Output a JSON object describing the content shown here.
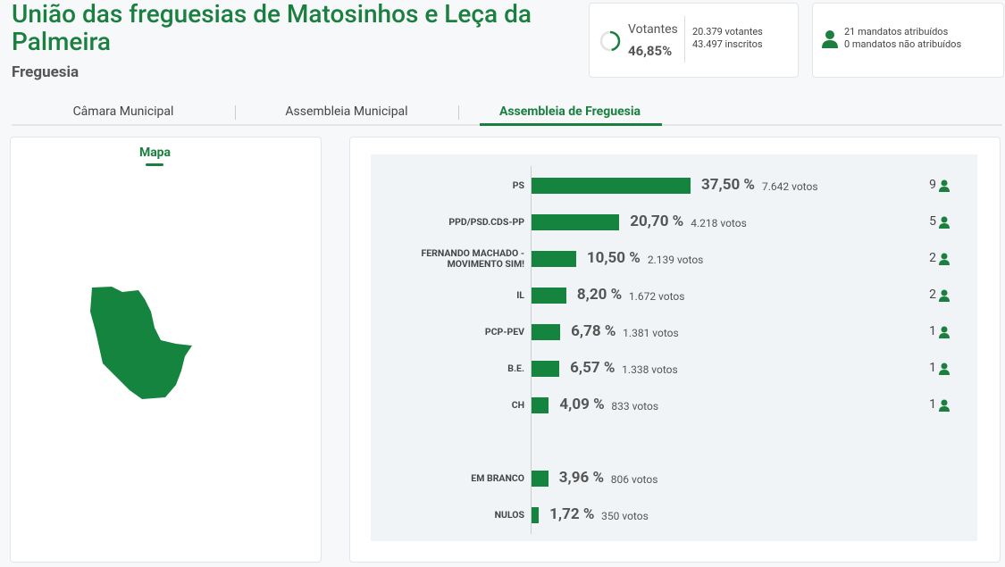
{
  "header": {
    "title": "União das freguesias de Matosinhos e Leça da Palmeira",
    "subtitle": "Freguesia"
  },
  "turnout": {
    "label": "Votantes",
    "value": 46.85,
    "value_label": "46,85%",
    "voters": "20.379 votantes",
    "registered": "43.497 inscritos"
  },
  "mandates": {
    "assigned": "21 mandatos atribuídos",
    "unassigned": "0 mandatos não atribuídos"
  },
  "tabs": [
    "Câmara Municipal",
    "Assembleia Municipal",
    "Assembleia de Freguesia"
  ],
  "map": {
    "title": "Mapa"
  },
  "results": {
    "parties": [
      {
        "name": "PS",
        "percent": 37.5,
        "percent_label": "37,50 %",
        "votes": "7.642 votos",
        "seats": 9
      },
      {
        "name": "PPD/PSD.CDS-PP",
        "percent": 20.7,
        "percent_label": "20,70 %",
        "votes": "4.218 votos",
        "seats": 5
      },
      {
        "name": "FERNANDO MACHADO - MOVIMENTO SIM!",
        "percent": 10.5,
        "percent_label": "10,50 %",
        "votes": "2.139 votos",
        "seats": 2
      },
      {
        "name": "IL",
        "percent": 8.2,
        "percent_label": "8,20 %",
        "votes": "1.672 votos",
        "seats": 2
      },
      {
        "name": "PCP-PEV",
        "percent": 6.78,
        "percent_label": "6,78 %",
        "votes": "1.381 votos",
        "seats": 1
      },
      {
        "name": "B.E.",
        "percent": 6.57,
        "percent_label": "6,57 %",
        "votes": "1.338 votos",
        "seats": 1
      },
      {
        "name": "CH",
        "percent": 4.09,
        "percent_label": "4,09 %",
        "votes": "833 votos",
        "seats": 1
      }
    ],
    "others": [
      {
        "name": "EM BRANCO",
        "percent": 3.96,
        "percent_label": "3,96 %",
        "votes": "806 votos"
      },
      {
        "name": "NULOS",
        "percent": 1.72,
        "percent_label": "1,72 %",
        "votes": "350 votos"
      }
    ]
  }
}
